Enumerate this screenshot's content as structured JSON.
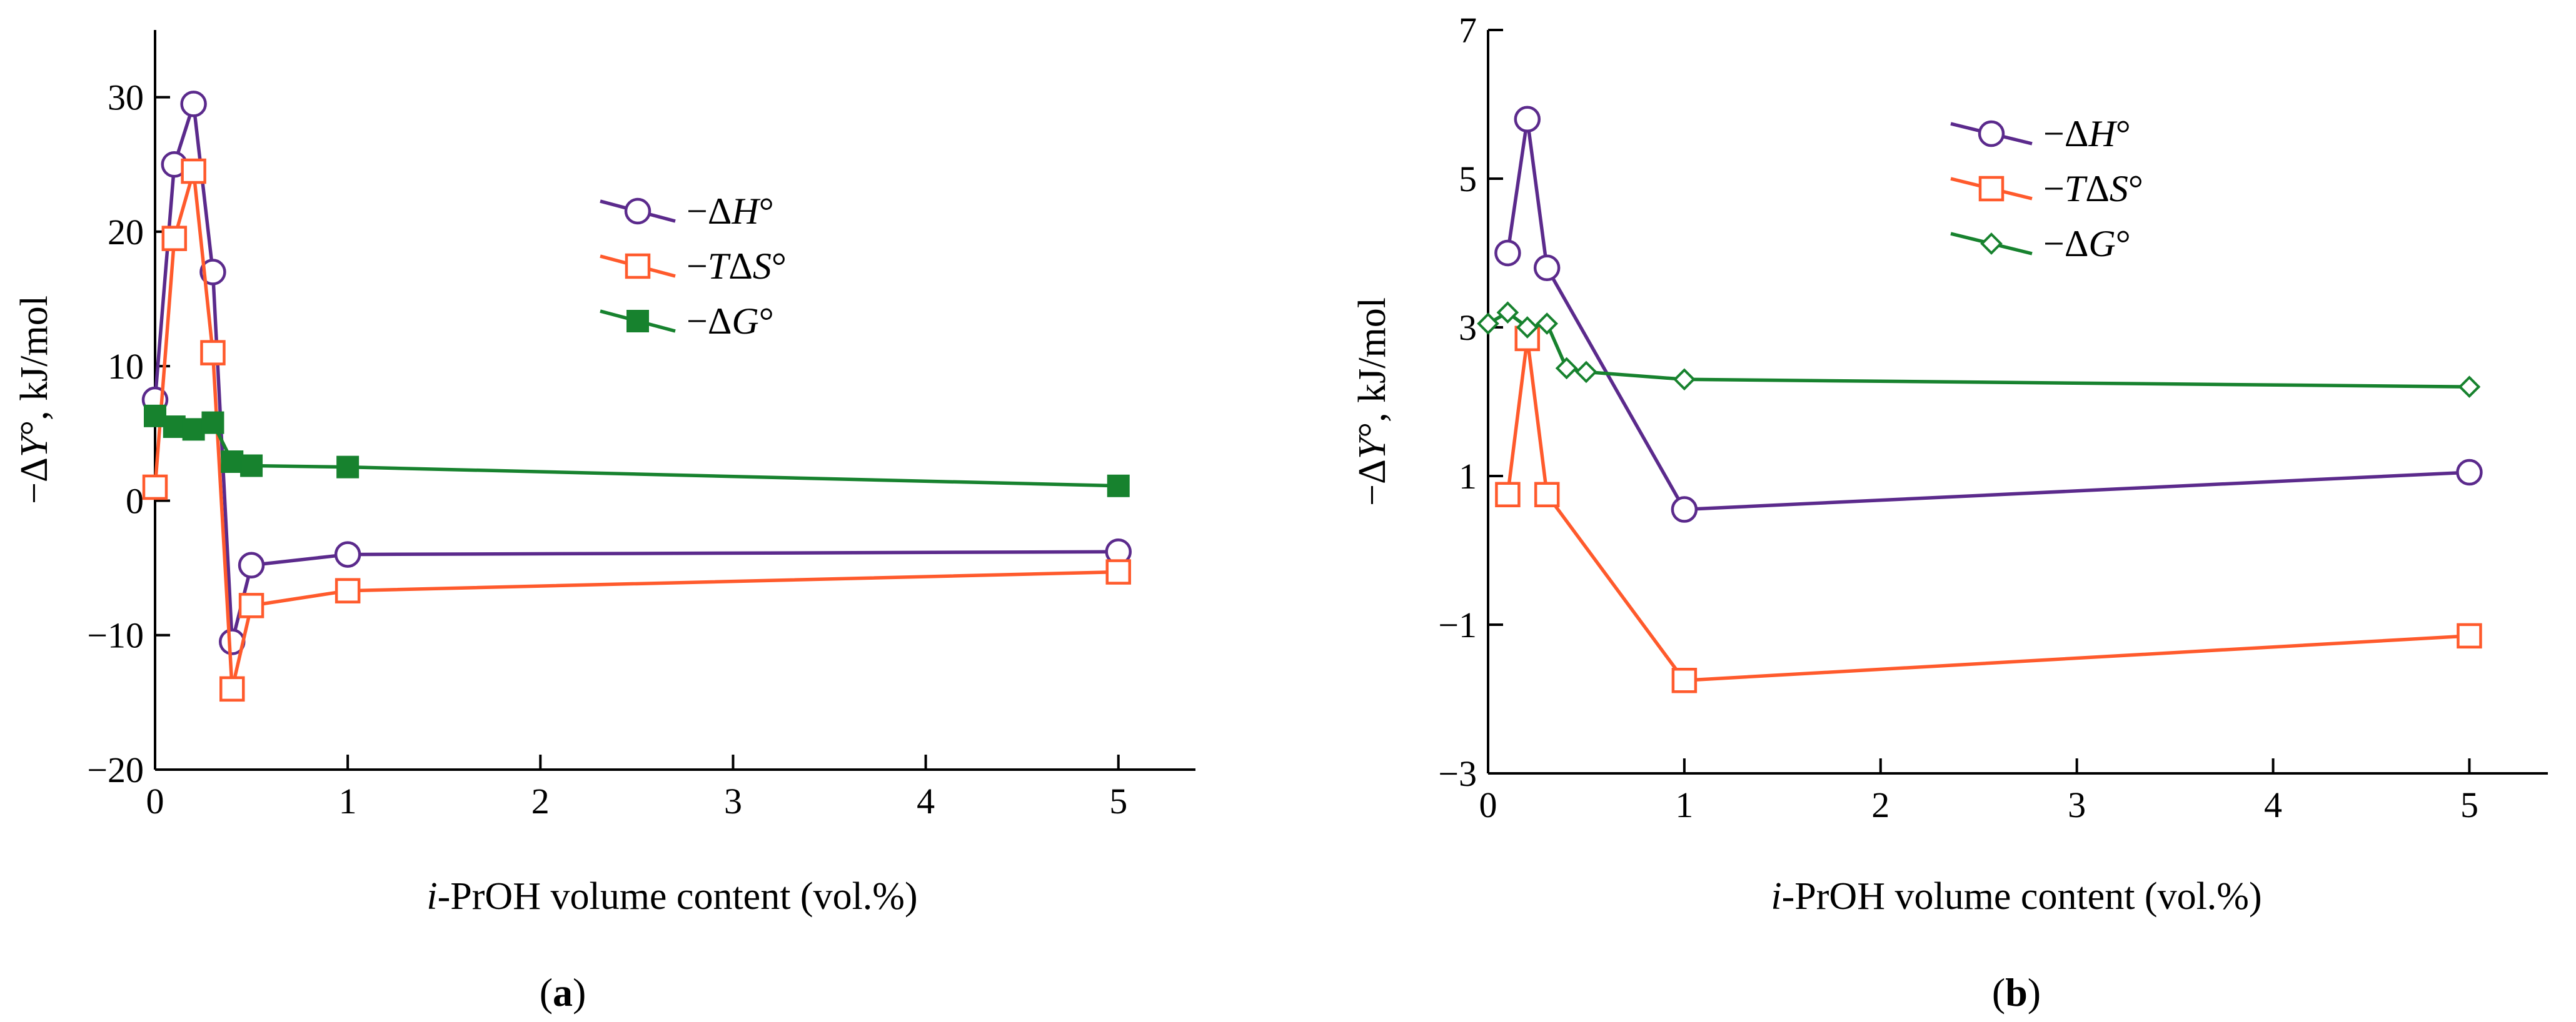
{
  "chart_data": [
    {
      "type": "line",
      "panel_label": "(a)",
      "panel_letter": "a",
      "xlabel_italic": "i",
      "xlabel_rest": "-PrOH volume content (vol.%)",
      "ylabel_prefix": "−Δ",
      "ylabel_var": "Y",
      "ylabel_suffix": "°, kJ/mol",
      "xlim": [
        0,
        5.4
      ],
      "ylim": [
        -20,
        35
      ],
      "xticks": [
        0,
        1,
        2,
        3,
        4,
        5
      ],
      "yticks": [
        -20,
        -10,
        0,
        10,
        20,
        30
      ],
      "ytick_labels": [
        "−20",
        "−10",
        "0",
        "10",
        "20",
        "30"
      ],
      "legend_position": "upper-middle",
      "series": [
        {
          "name": "−ΔH°",
          "name_prefix": "−Δ",
          "name_var": "H",
          "name_suffix": "°",
          "color": "#5b2a8c",
          "marker": "circle-open",
          "x": [
            0,
            0.1,
            0.2,
            0.3,
            0.4,
            0.5,
            1,
            5
          ],
          "y": [
            7.5,
            25,
            29.5,
            17,
            -10.5,
            -4.8,
            -4,
            -3.8
          ]
        },
        {
          "name": "−TΔS°",
          "name_prefix": "−",
          "name_var": "T",
          "name_mid": "Δ",
          "name_var2": "S",
          "name_suffix": "°",
          "color": "#ff5a2c",
          "marker": "square-open",
          "x": [
            0,
            0.1,
            0.2,
            0.3,
            0.4,
            0.5,
            1,
            5
          ],
          "y": [
            1,
            19.5,
            24.5,
            11,
            -14,
            -7.8,
            -6.7,
            -5.3
          ]
        },
        {
          "name": "−ΔG°",
          "name_prefix": "−Δ",
          "name_var": "G",
          "name_suffix": "°",
          "color": "#17822e",
          "marker": "square-filled",
          "x": [
            0,
            0.1,
            0.2,
            0.3,
            0.4,
            0.5,
            1,
            5
          ],
          "y": [
            6.3,
            5.5,
            5.3,
            5.8,
            2.9,
            2.6,
            2.5,
            1.1
          ]
        }
      ]
    },
    {
      "type": "line",
      "panel_label": "(b)",
      "panel_letter": "b",
      "xlabel_italic": "i",
      "xlabel_rest": "-PrOH volume content (vol.%)",
      "ylabel_prefix": "−Δ",
      "ylabel_var": "Y",
      "ylabel_suffix": "°, kJ/mol",
      "xlim": [
        0,
        5.4
      ],
      "ylim": [
        -3,
        7
      ],
      "xticks": [
        0,
        1,
        2,
        3,
        4,
        5
      ],
      "yticks": [
        -3,
        -1,
        1,
        3,
        5,
        7
      ],
      "ytick_labels": [
        "−3",
        "−1",
        "1",
        "3",
        "5",
        "7"
      ],
      "legend_position": "upper-middle",
      "series": [
        {
          "name": "−ΔH°",
          "name_prefix": "−Δ",
          "name_var": "H",
          "name_suffix": "°",
          "color": "#5b2a8c",
          "marker": "circle-open",
          "x": [
            0.1,
            0.2,
            0.3,
            1,
            5
          ],
          "y": [
            4.0,
            5.8,
            3.8,
            0.55,
            1.05
          ]
        },
        {
          "name": "−TΔS°",
          "name_prefix": "−",
          "name_var": "T",
          "name_mid": "Δ",
          "name_var2": "S",
          "name_suffix": "°",
          "color": "#ff5a2c",
          "marker": "square-open",
          "x": [
            0.1,
            0.2,
            0.3,
            1,
            5
          ],
          "y": [
            0.75,
            2.85,
            0.75,
            -1.75,
            -1.15
          ]
        },
        {
          "name": "−ΔG°",
          "name_prefix": "−Δ",
          "name_var": "G",
          "name_suffix": "°",
          "color": "#17822e",
          "marker": "diamond-open",
          "x": [
            0,
            0.1,
            0.2,
            0.3,
            0.4,
            0.5,
            1,
            5
          ],
          "y": [
            3.05,
            3.2,
            3.0,
            3.05,
            2.45,
            2.4,
            2.3,
            2.2
          ]
        }
      ]
    }
  ]
}
